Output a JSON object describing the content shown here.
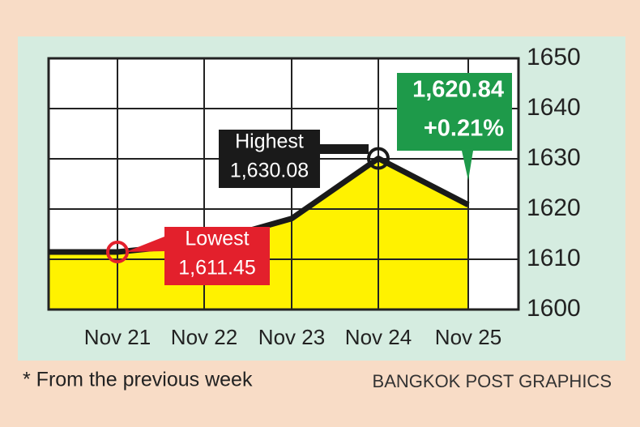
{
  "chart_data": {
    "type": "line",
    "categories": [
      "Nov 21",
      "Nov 22",
      "Nov 23",
      "Nov 24",
      "Nov 25"
    ],
    "series": [
      {
        "color": "#1a1a1a",
        "fill": "#fff200",
        "values": [
          1611.45,
          1613.2,
          1618.1,
          1630.08,
          1620.84
        ]
      }
    ],
    "ylim": [
      1600,
      1650
    ],
    "yticks": [
      1600,
      1610,
      1620,
      1630,
      1640,
      1650
    ],
    "grid": true,
    "annotations": [
      {
        "lines": [
          "Lowest",
          "1,611.45"
        ],
        "color": "#e3202c",
        "point": 0
      },
      {
        "lines": [
          "Highest",
          "1,630.08"
        ],
        "color": "#1a1a1a",
        "point": 3
      },
      {
        "lines": [
          "1,620.84",
          "+0.21%"
        ],
        "color": "#1e9a4a",
        "point": 4
      }
    ],
    "footnote": "* From the previous week",
    "credit": "BANGKOK POST GRAPHICS"
  }
}
